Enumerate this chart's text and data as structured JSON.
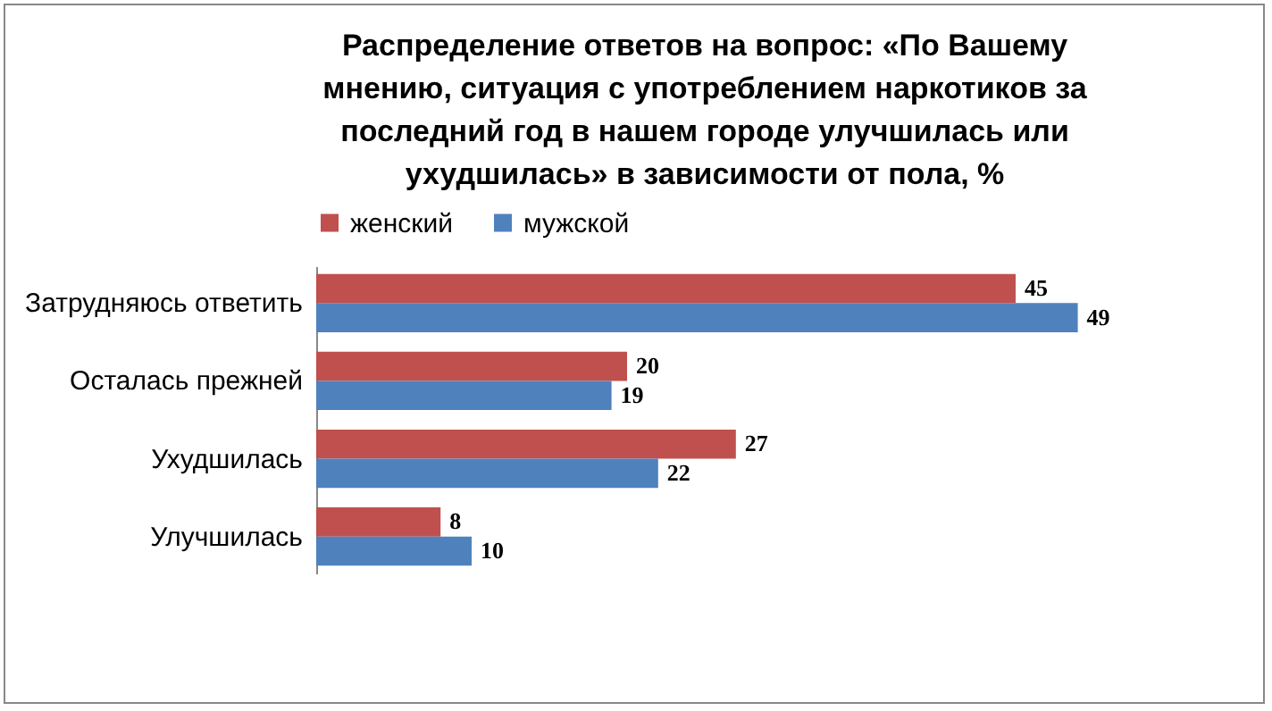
{
  "chart_data": {
    "type": "bar",
    "orientation": "horizontal",
    "title": "Распределение ответов на вопрос: «По Вашему мнению, ситуация с употреблением наркотиков за последний год в нашем городе улучшилась или ухудшилась» в зависимости от пола, %",
    "categories": [
      "Затрудняюсь ответить",
      "Осталась прежней",
      "Ухудшилась",
      "Улучшилась"
    ],
    "series": [
      {
        "name": "женский",
        "color": "#c0504d",
        "values": [
          45,
          20,
          27,
          8
        ]
      },
      {
        "name": "мужской",
        "color": "#4f81bd",
        "values": [
          49,
          19,
          22,
          10
        ]
      }
    ],
    "data_labels": true,
    "legend": "top",
    "grid": false
  }
}
